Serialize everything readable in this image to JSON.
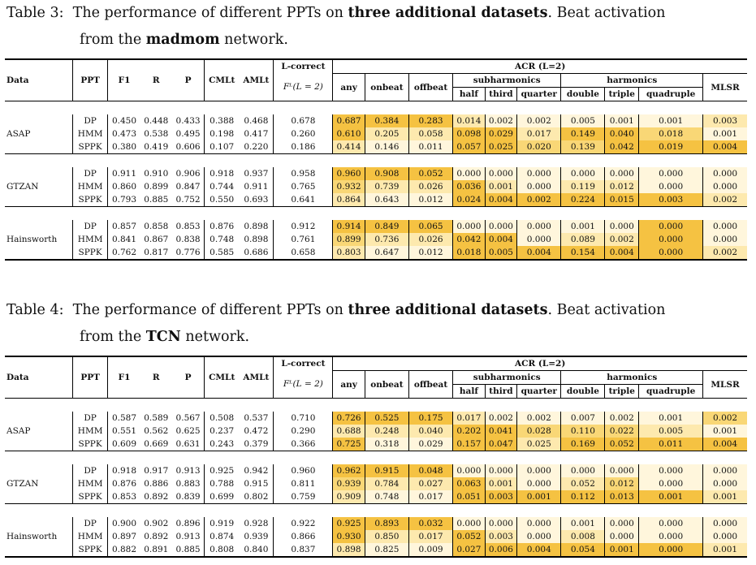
{
  "tables": [
    {
      "caption_label": "Table 3:",
      "caption_pre": "The performance of different PPTs on",
      "caption_bold": "three additional datasets",
      "caption_post": ". Beat activation",
      "caption_line2_pre": "from the",
      "caption_line2_bold": "madmom",
      "caption_line2_post": "network.",
      "headers": {
        "data": "Data",
        "ppt": "PPT",
        "f1": "F1",
        "r": "R",
        "p": "P",
        "cmlt": "CMLt",
        "amlt": "AMLt",
        "lcorrect": "L-correct",
        "lcorrect_sub": "Fᴸ(L = 2)",
        "acr": "ACR (L=2)",
        "any": "any",
        "onbeat": "onbeat",
        "offbeat": "offbeat",
        "subharmonics": "subharmonics",
        "harmonics": "harmonics",
        "half": "half",
        "third": "third",
        "quarter": "quarter",
        "double": "double",
        "triple": "triple",
        "quadruple": "quadruple",
        "mlsr": "MLSR"
      },
      "groups": [
        {
          "name": "ASAP",
          "rows": [
            [
              "DP",
              "0.450",
              "0.448",
              "0.433",
              "0.388",
              "0.468",
              "0.678",
              "0.687",
              "0.384",
              "0.283",
              "0.014",
              "0.002",
              "0.002",
              "0.005",
              "0.001",
              "0.001",
              "0.003"
            ],
            [
              "HMM",
              "0.473",
              "0.538",
              "0.495",
              "0.198",
              "0.417",
              "0.260",
              "0.610",
              "0.205",
              "0.058",
              "0.098",
              "0.029",
              "0.017",
              "0.149",
              "0.040",
              "0.018",
              "0.001"
            ],
            [
              "SPPK",
              "0.380",
              "0.419",
              "0.606",
              "0.107",
              "0.220",
              "0.186",
              "0.414",
              "0.146",
              "0.011",
              "0.057",
              "0.025",
              "0.020",
              "0.139",
              "0.042",
              "0.019",
              "0.004"
            ]
          ],
          "shade": [
            [
              3,
              3,
              3,
              1,
              0,
              0,
              0,
              0,
              0,
              1
            ],
            [
              3,
              1,
              1,
              3,
              3,
              1,
              3,
              3,
              2,
              0
            ],
            [
              1,
              0,
              0,
              3,
              3,
              2,
              2,
              3,
              3,
              3
            ]
          ]
        },
        {
          "name": "GTZAN",
          "rows": [
            [
              "DP",
              "0.911",
              "0.910",
              "0.906",
              "0.918",
              "0.937",
              "0.958",
              "0.960",
              "0.908",
              "0.052",
              "0.000",
              "0.000",
              "0.000",
              "0.000",
              "0.000",
              "0.000",
              "0.000"
            ],
            [
              "HMM",
              "0.860",
              "0.899",
              "0.847",
              "0.744",
              "0.911",
              "0.765",
              "0.932",
              "0.739",
              "0.026",
              "0.036",
              "0.001",
              "0.000",
              "0.119",
              "0.012",
              "0.000",
              "0.000"
            ],
            [
              "SPPK",
              "0.793",
              "0.885",
              "0.752",
              "0.550",
              "0.693",
              "0.641",
              "0.864",
              "0.643",
              "0.012",
              "0.024",
              "0.004",
              "0.002",
              "0.224",
              "0.015",
              "0.003",
              "0.002"
            ]
          ],
          "shade": [
            [
              3,
              3,
              3,
              0,
              0,
              0,
              0,
              0,
              0,
              0
            ],
            [
              2,
              1,
              1,
              3,
              1,
              0,
              1,
              1,
              0,
              0
            ],
            [
              1,
              0,
              0,
              3,
              3,
              3,
              3,
              3,
              3,
              1
            ]
          ]
        },
        {
          "name": "Hainsworth",
          "rows": [
            [
              "DP",
              "0.857",
              "0.858",
              "0.853",
              "0.876",
              "0.898",
              "0.912",
              "0.914",
              "0.849",
              "0.065",
              "0.000",
              "0.000",
              "0.000",
              "0.001",
              "0.000",
              "0.000",
              "0.000"
            ],
            [
              "HMM",
              "0.841",
              "0.867",
              "0.838",
              "0.748",
              "0.898",
              "0.761",
              "0.899",
              "0.736",
              "0.026",
              "0.042",
              "0.004",
              "0.000",
              "0.089",
              "0.002",
              "0.000",
              "0.000"
            ],
            [
              "SPPK",
              "0.762",
              "0.817",
              "0.776",
              "0.585",
              "0.686",
              "0.658",
              "0.803",
              "0.647",
              "0.012",
              "0.018",
              "0.005",
              "0.004",
              "0.154",
              "0.004",
              "0.000",
              "0.002"
            ]
          ],
          "shade": [
            [
              3,
              3,
              3,
              0,
              0,
              0,
              0,
              0,
              3,
              0
            ],
            [
              2,
              1,
              1,
              3,
              3,
              0,
              1,
              1,
              3,
              0
            ],
            [
              1,
              0,
              0,
              3,
              3,
              3,
              3,
              3,
              3,
              1
            ]
          ]
        }
      ]
    },
    {
      "caption_label": "Table 4:",
      "caption_pre": "The performance of different PPTs on",
      "caption_bold": "three additional datasets",
      "caption_post": ". Beat activation",
      "caption_line2_pre": "from the",
      "caption_line2_bold": "TCN",
      "caption_line2_post": "network.",
      "headers": {
        "data": "Data",
        "ppt": "PPT",
        "f1": "F1",
        "r": "R",
        "p": "P",
        "cmlt": "CMLt",
        "amlt": "AMLt",
        "lcorrect": "L-correct",
        "lcorrect_sub": "Fᴸ(L = 2)",
        "acr": "ACR (L=2)",
        "any": "any",
        "onbeat": "onbeat",
        "offbeat": "offbeat",
        "subharmonics": "subharmonics",
        "harmonics": "harmonics",
        "half": "half",
        "third": "third",
        "quarter": "quarter",
        "double": "double",
        "triple": "triple",
        "quadruple": "quadruple",
        "mlsr": "MLSR"
      },
      "groups": [
        {
          "name": "ASAP",
          "rows": [
            [
              "DP",
              "0.587",
              "0.589",
              "0.567",
              "0.508",
              "0.537",
              "0.710",
              "0.726",
              "0.525",
              "0.175",
              "0.017",
              "0.002",
              "0.002",
              "0.007",
              "0.002",
              "0.001",
              "0.002"
            ],
            [
              "HMM",
              "0.551",
              "0.562",
              "0.625",
              "0.237",
              "0.472",
              "0.290",
              "0.688",
              "0.248",
              "0.040",
              "0.202",
              "0.041",
              "0.028",
              "0.110",
              "0.022",
              "0.005",
              "0.001"
            ],
            [
              "SPPK",
              "0.609",
              "0.669",
              "0.631",
              "0.243",
              "0.379",
              "0.366",
              "0.725",
              "0.318",
              "0.029",
              "0.157",
              "0.047",
              "0.025",
              "0.169",
              "0.052",
              "0.011",
              "0.004"
            ]
          ],
          "shade": [
            [
              3,
              3,
              3,
              1,
              0,
              0,
              0,
              0,
              0,
              2
            ],
            [
              1,
              1,
              1,
              3,
              3,
              2,
              2,
              2,
              1,
              0
            ],
            [
              3,
              0,
              0,
              3,
              3,
              1,
              3,
              3,
              3,
              3
            ]
          ]
        },
        {
          "name": "GTZAN",
          "rows": [
            [
              "DP",
              "0.918",
              "0.917",
              "0.913",
              "0.925",
              "0.942",
              "0.960",
              "0.962",
              "0.915",
              "0.048",
              "0.000",
              "0.000",
              "0.000",
              "0.000",
              "0.000",
              "0.000",
              "0.000"
            ],
            [
              "HMM",
              "0.876",
              "0.886",
              "0.883",
              "0.788",
              "0.915",
              "0.811",
              "0.939",
              "0.784",
              "0.027",
              "0.063",
              "0.001",
              "0.000",
              "0.052",
              "0.012",
              "0.000",
              "0.000"
            ],
            [
              "SPPK",
              "0.853",
              "0.892",
              "0.839",
              "0.699",
              "0.802",
              "0.759",
              "0.909",
              "0.748",
              "0.017",
              "0.051",
              "0.003",
              "0.001",
              "0.112",
              "0.013",
              "0.001",
              "0.001"
            ]
          ],
          "shade": [
            [
              3,
              3,
              3,
              0,
              0,
              0,
              0,
              0,
              0,
              0
            ],
            [
              2,
              1,
              1,
              3,
              1,
              0,
              1,
              2,
              0,
              0
            ],
            [
              1,
              0,
              0,
              3,
              3,
              3,
              3,
              3,
              3,
              1
            ]
          ]
        },
        {
          "name": "Hainsworth",
          "rows": [
            [
              "DP",
              "0.900",
              "0.902",
              "0.896",
              "0.919",
              "0.928",
              "0.922",
              "0.925",
              "0.893",
              "0.032",
              "0.000",
              "0.000",
              "0.000",
              "0.001",
              "0.000",
              "0.000",
              "0.000"
            ],
            [
              "HMM",
              "0.897",
              "0.892",
              "0.913",
              "0.874",
              "0.939",
              "0.866",
              "0.930",
              "0.850",
              "0.017",
              "0.052",
              "0.003",
              "0.000",
              "0.008",
              "0.000",
              "0.000",
              "0.000"
            ],
            [
              "SPPK",
              "0.882",
              "0.891",
              "0.885",
              "0.808",
              "0.840",
              "0.837",
              "0.898",
              "0.825",
              "0.009",
              "0.027",
              "0.006",
              "0.004",
              "0.054",
              "0.001",
              "0.000",
              "0.001"
            ]
          ],
          "shade": [
            [
              3,
              3,
              3,
              0,
              0,
              0,
              0,
              0,
              0,
              0
            ],
            [
              3,
              1,
              1,
              3,
              1,
              0,
              1,
              0,
              0,
              0
            ],
            [
              1,
              0,
              0,
              3,
              3,
              3,
              3,
              3,
              3,
              1
            ]
          ]
        }
      ]
    }
  ]
}
